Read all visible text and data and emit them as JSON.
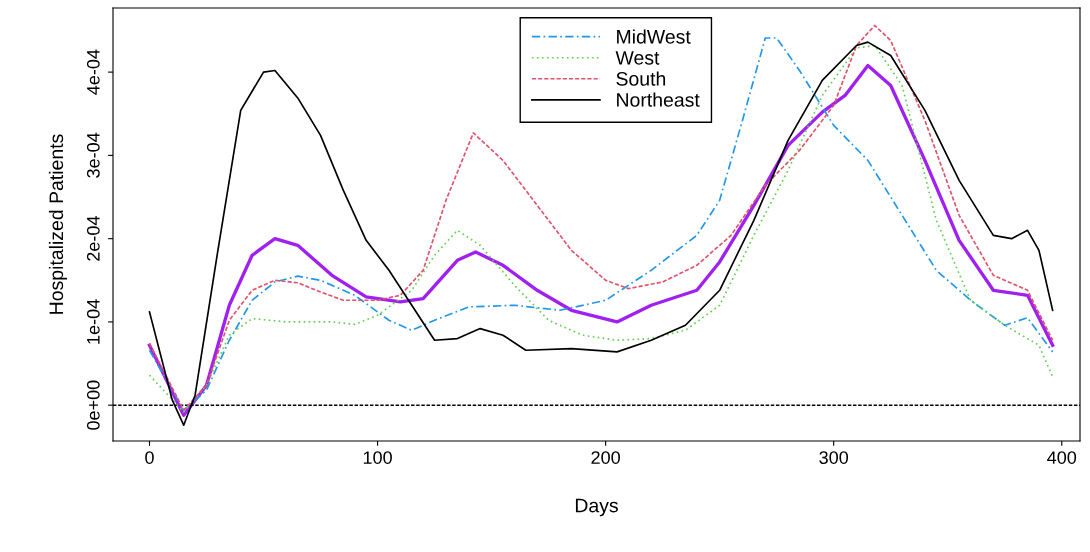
{
  "chart_data": {
    "type": "line",
    "xlabel": "Days",
    "ylabel": "Hospitalized Patients",
    "xlim": [
      -16,
      408
    ],
    "ylim": [
      -4.3e-05,
      0.000477
    ],
    "xticks": [
      0,
      100,
      200,
      300,
      400
    ],
    "yticks": [
      {
        "value": 0,
        "label": "0e+00"
      },
      {
        "value": 0.0001,
        "label": "1e-04"
      },
      {
        "value": 0.0002,
        "label": "2e-04"
      },
      {
        "value": 0.0003,
        "label": "3e-04"
      },
      {
        "value": 0.0004,
        "label": "4e-04"
      }
    ],
    "grid": false,
    "legend": "top",
    "marker": "none",
    "ref_lines": [
      {
        "axis": "y",
        "value": 0,
        "color": "#000000",
        "line_style": "dashed"
      }
    ],
    "series": [
      {
        "name": "MidWest",
        "color": "#2297e6",
        "line_style": "dashdot",
        "x": [
          0,
          15,
          25,
          35,
          45,
          55,
          65,
          75,
          90,
          105,
          115,
          125,
          140,
          160,
          180,
          200,
          220,
          240,
          250,
          260,
          270,
          275,
          285,
          300,
          315,
          330,
          345,
          360,
          375,
          385,
          396
        ],
        "values": [
          6.6e-05,
          -6e-06,
          1.8e-05,
          7.8e-05,
          0.000126,
          0.000148,
          0.000155,
          0.00015,
          0.000132,
          0.000102,
          9e-05,
          0.000102,
          0.000118,
          0.00012,
          0.000114,
          0.000126,
          0.000162,
          0.000204,
          0.000246,
          0.000342,
          0.000441,
          0.000441,
          0.000402,
          0.000336,
          0.000294,
          0.000228,
          0.000162,
          0.000126,
          9.6e-05,
          0.000105,
          6.4e-05
        ]
      },
      {
        "name": "West",
        "color": "#61d04f",
        "line_style": "dotted",
        "x": [
          0,
          15,
          25,
          35,
          45,
          60,
          80,
          90,
          100,
          115,
          125,
          135,
          145,
          160,
          175,
          190,
          205,
          220,
          235,
          250,
          265,
          280,
          295,
          310,
          318,
          330,
          345,
          360,
          375,
          390,
          396
        ],
        "values": [
          3.6e-05,
          -8e-06,
          2.4e-05,
          8.4e-05,
          0.000104,
          0.0001,
          0.0001,
          9.7e-05,
          0.000108,
          0.000138,
          0.00018,
          0.00021,
          0.000192,
          0.000144,
          0.000102,
          8.4e-05,
          7.8e-05,
          8e-05,
          9e-05,
          0.00012,
          0.000204,
          0.000282,
          0.000372,
          0.000429,
          0.000432,
          0.000384,
          0.000222,
          0.000126,
          9.6e-05,
          7.2e-05,
          3.4e-05
        ]
      },
      {
        "name": "South",
        "color": "#df536b",
        "line_style": "dashed",
        "x": [
          0,
          15,
          25,
          35,
          45,
          55,
          65,
          75,
          85,
          100,
          110,
          120,
          130,
          142,
          155,
          170,
          185,
          200,
          210,
          225,
          240,
          255,
          270,
          285,
          300,
          310,
          318,
          325,
          340,
          355,
          370,
          385,
          396
        ],
        "values": [
          7.4e-05,
          -6e-06,
          2.4e-05,
          0.000102,
          0.000138,
          0.00015,
          0.000147,
          0.000136,
          0.000126,
          0.000126,
          0.000132,
          0.000162,
          0.000246,
          0.000327,
          0.000294,
          0.00024,
          0.000186,
          0.00015,
          0.00014,
          0.000148,
          0.000168,
          0.000204,
          0.000264,
          0.000306,
          0.00036,
          0.000432,
          0.000456,
          0.000438,
          0.000342,
          0.000228,
          0.000156,
          0.000138,
          7.8e-05
        ]
      },
      {
        "name": "Northeast",
        "color": "#000000",
        "line_style": "solid",
        "x": [
          0,
          10,
          15,
          20,
          30,
          40,
          50,
          55,
          65,
          75,
          85,
          95,
          105,
          115,
          125,
          135,
          145,
          155,
          165,
          185,
          205,
          220,
          235,
          250,
          265,
          280,
          295,
          310,
          315,
          325,
          340,
          355,
          370,
          378,
          385,
          390,
          396
        ],
        "values": [
          0.000112,
          6e-06,
          -2.4e-05,
          1.2e-05,
          0.000186,
          0.000354,
          0.0004,
          0.000402,
          0.000369,
          0.000324,
          0.000258,
          0.000198,
          0.000162,
          0.00012,
          7.8e-05,
          8e-05,
          9.2e-05,
          8.4e-05,
          6.6e-05,
          6.8e-05,
          6.4e-05,
          7.8e-05,
          9.6e-05,
          0.000138,
          0.000222,
          0.000318,
          0.00039,
          0.000432,
          0.000436,
          0.00042,
          0.000354,
          0.00027,
          0.000204,
          0.0002,
          0.00021,
          0.000186,
          0.000114
        ]
      },
      {
        "color": "#a020f0",
        "line_style": "solid",
        "x": [
          0,
          15,
          25,
          35,
          45,
          55,
          65,
          80,
          95,
          110,
          120,
          135,
          143,
          155,
          170,
          185,
          205,
          220,
          240,
          250,
          265,
          280,
          295,
          305,
          315,
          325,
          340,
          355,
          370,
          385,
          396
        ],
        "values": [
          7.2e-05,
          -1.2e-05,
          2.4e-05,
          0.00012,
          0.00018,
          0.0002,
          0.000192,
          0.000156,
          0.00013,
          0.000124,
          0.000128,
          0.000174,
          0.000184,
          0.000168,
          0.000138,
          0.000114,
          0.0001,
          0.00012,
          0.000138,
          0.000172,
          0.00024,
          0.000312,
          0.000352,
          0.000372,
          0.000408,
          0.000384,
          0.000294,
          0.000198,
          0.000138,
          0.000132,
          7.2e-05
        ]
      }
    ]
  }
}
